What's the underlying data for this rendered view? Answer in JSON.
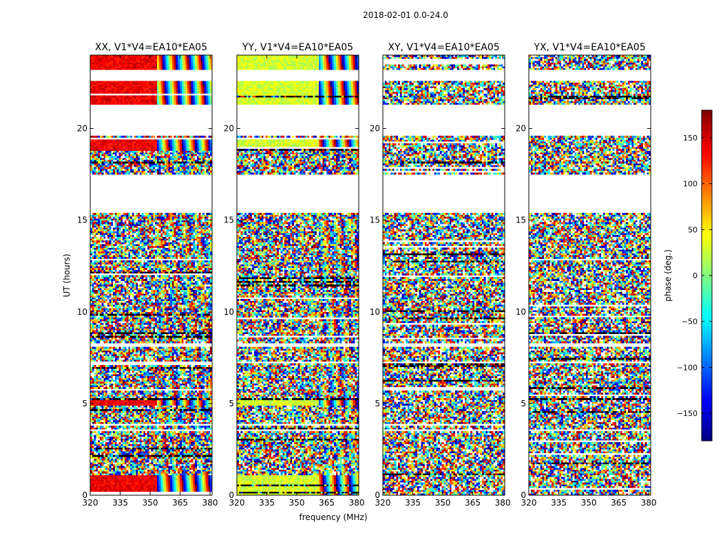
{
  "suptitle": "2018-02-01 0.0-24.0",
  "chart_data": {
    "type": "heatmap",
    "title": "2018-02-01 0.0-24.0",
    "xlabel": "frequency (MHz)",
    "ylabel": "UT (hours)",
    "xlim": [
      320,
      381
    ],
    "ylim": [
      0,
      24
    ],
    "xticks": [
      320,
      335,
      350,
      365,
      380
    ],
    "yticks": [
      0,
      5,
      10,
      15,
      20
    ],
    "panels": [
      {
        "title": "XX, V1*V4=EA10*EA05",
        "pol": "XX",
        "base_phase": 140,
        "wrap_start_mhz": 353
      },
      {
        "title": "YY, V1*V4=EA10*EA05",
        "pol": "YY",
        "base_phase": 30,
        "wrap_start_mhz": 361
      },
      {
        "title": "XY, V1*V4=EA10*EA05",
        "pol": "XY",
        "base_phase": null,
        "wrap_start_mhz": null
      },
      {
        "title": "YX, V1*V4=EA10*EA05",
        "pol": "YX",
        "base_phase": null,
        "wrap_start_mhz": null
      }
    ],
    "gaps_ut_hours": [
      [
        22.6,
        23.2
      ],
      [
        19.6,
        21.3
      ],
      [
        15.4,
        17.5
      ],
      [
        8.1,
        8.3
      ],
      [
        7.2,
        7.35
      ],
      [
        3.5,
        3.6
      ],
      [
        1.05,
        1.15
      ]
    ],
    "colorbar": {
      "label": "phase (deg.)",
      "range": [
        -180,
        180
      ],
      "ticks": [
        150,
        100,
        50,
        0,
        -50,
        -100,
        -150
      ],
      "tick_labels": [
        "150",
        "100",
        "50",
        "0",
        "−50",
        "−100",
        "−150"
      ],
      "colormap": [
        "#000080",
        "#0000ff",
        "#0080ff",
        "#00ffff",
        "#80ff80",
        "#ffff00",
        "#ff8000",
        "#ff0000",
        "#800000"
      ]
    }
  }
}
